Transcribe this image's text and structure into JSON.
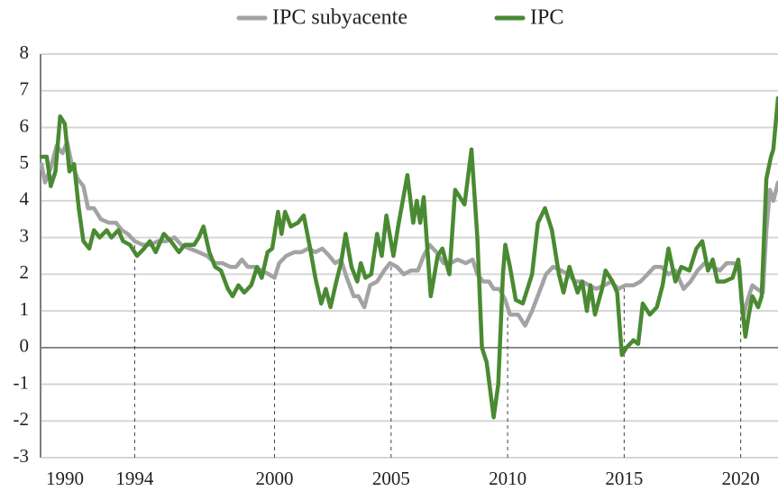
{
  "chart_data": {
    "type": "line",
    "xlim": [
      1990,
      2021.6
    ],
    "xticks": [
      1990,
      1994,
      2000,
      2005,
      2010,
      2015,
      2020
    ],
    "ylim": [
      -3,
      8
    ],
    "yticks": [
      -3,
      -2,
      -1,
      0,
      1,
      2,
      3,
      4,
      5,
      6,
      7,
      8
    ],
    "grid": true,
    "legend": "top",
    "series": [
      {
        "name": "IPC subyacente",
        "color": "#a3a3a3",
        "x": [
          1990,
          1990.15,
          1990.4,
          1990.65,
          1990.9,
          1991.1,
          1991.3,
          1991.55,
          1991.8,
          1992,
          1992.25,
          1992.55,
          1992.9,
          1993.2,
          1993.45,
          1993.7,
          1994,
          1994.35,
          1994.65,
          1995,
          1995.35,
          1995.7,
          1996,
          1996.35,
          1996.75,
          1997.1,
          1997.45,
          1997.75,
          1998.1,
          1998.35,
          1998.6,
          1998.85,
          1999.15,
          1999.45,
          1999.75,
          2000,
          2000.2,
          2000.5,
          2000.85,
          2001.15,
          2001.45,
          2001.75,
          2002.05,
          2002.35,
          2002.6,
          2002.85,
          2003.1,
          2003.4,
          2003.6,
          2003.85,
          2004.1,
          2004.4,
          2004.7,
          2004.95,
          2005.25,
          2005.55,
          2005.85,
          2006.15,
          2006.4,
          2006.65,
          2006.95,
          2007.25,
          2007.55,
          2007.85,
          2008.2,
          2008.5,
          2008.7,
          2008.95,
          2009.2,
          2009.4,
          2009.65,
          2009.9,
          2010.1,
          2010.45,
          2010.75,
          2011.05,
          2011.35,
          2011.65,
          2011.95,
          2012.3,
          2012.6,
          2012.9,
          2013.2,
          2013.5,
          2013.8,
          2014.15,
          2014.45,
          2014.75,
          2015.05,
          2015.4,
          2015.7,
          2016,
          2016.3,
          2016.6,
          2016.9,
          2017.2,
          2017.55,
          2017.85,
          2018.15,
          2018.45,
          2018.8,
          2019.1,
          2019.4,
          2019.7,
          2019.95,
          2020.1,
          2020.25,
          2020.5,
          2020.7,
          2020.95,
          2021.1,
          2021.25,
          2021.4,
          2021.6
        ],
        "values": [
          5.0,
          4.5,
          4.9,
          5.5,
          5.3,
          5.6,
          5.0,
          4.6,
          4.4,
          3.8,
          3.8,
          3.5,
          3.4,
          3.4,
          3.2,
          3.1,
          2.9,
          2.8,
          2.8,
          2.9,
          2.9,
          3.0,
          2.8,
          2.7,
          2.6,
          2.5,
          2.3,
          2.3,
          2.2,
          2.2,
          2.4,
          2.2,
          2.2,
          2.1,
          2.0,
          1.9,
          2.3,
          2.5,
          2.6,
          2.6,
          2.7,
          2.6,
          2.7,
          2.5,
          2.3,
          2.4,
          1.9,
          1.4,
          1.4,
          1.1,
          1.7,
          1.8,
          2.1,
          2.3,
          2.2,
          2.0,
          2.1,
          2.1,
          2.5,
          2.8,
          2.6,
          2.3,
          2.3,
          2.4,
          2.3,
          2.4,
          2.0,
          1.8,
          1.8,
          1.6,
          1.6,
          1.3,
          0.9,
          0.9,
          0.6,
          1.0,
          1.5,
          2.0,
          2.2,
          2.1,
          2.0,
          1.8,
          1.8,
          1.7,
          1.6,
          1.7,
          1.8,
          1.6,
          1.7,
          1.7,
          1.8,
          2.0,
          2.2,
          2.2,
          2.0,
          2.1,
          1.6,
          1.8,
          2.1,
          2.3,
          2.2,
          2.1,
          2.3,
          2.3,
          2.2,
          0.8,
          1.2,
          1.7,
          1.6,
          1.5,
          3.2,
          4.3,
          4.0,
          4.5
        ]
      },
      {
        "name": "IPC",
        "color": "#4a8a32",
        "x": [
          1990,
          1990.23,
          1990.4,
          1990.6,
          1990.8,
          1991,
          1991.2,
          1991.4,
          1991.6,
          1991.8,
          1992.05,
          1992.25,
          1992.5,
          1992.8,
          1993,
          1993.3,
          1993.5,
          1993.8,
          1994.1,
          1994.4,
          1994.65,
          1994.9,
          1995.25,
          1995.55,
          1995.9,
          1996.15,
          1996.55,
          1996.75,
          1996.95,
          1997.2,
          1997.45,
          1997.7,
          1998,
          1998.2,
          1998.45,
          1998.7,
          1999,
          1999.25,
          1999.45,
          1999.7,
          1999.9,
          2000.15,
          2000.3,
          2000.45,
          2000.7,
          2001,
          2001.25,
          2001.5,
          2001.75,
          2002,
          2002.2,
          2002.4,
          2002.65,
          2002.85,
          2003.05,
          2003.3,
          2003.55,
          2003.7,
          2003.9,
          2004.15,
          2004.4,
          2004.6,
          2004.8,
          2005.1,
          2005.3,
          2005.7,
          2005.95,
          2006.1,
          2006.25,
          2006.4,
          2006.7,
          2007,
          2007.2,
          2007.5,
          2007.75,
          2008.15,
          2008.45,
          2008.7,
          2008.9,
          2009.1,
          2009.4,
          2009.6,
          2009.8,
          2009.9,
          2010.1,
          2010.35,
          2010.65,
          2011.05,
          2011.3,
          2011.6,
          2011.9,
          2012.2,
          2012.4,
          2012.65,
          2013,
          2013.2,
          2013.4,
          2013.55,
          2013.75,
          2014.05,
          2014.2,
          2014.5,
          2014.7,
          2014.9,
          2015.1,
          2015.4,
          2015.6,
          2015.8,
          2016.1,
          2016.4,
          2016.65,
          2016.9,
          2017.2,
          2017.45,
          2017.8,
          2018.1,
          2018.35,
          2018.6,
          2018.8,
          2019,
          2019.3,
          2019.65,
          2019.9,
          2020.05,
          2020.2,
          2020.35,
          2020.5,
          2020.75,
          2020.9,
          2021.1,
          2021.3,
          2021.4,
          2021.6
        ],
        "values": [
          5.2,
          5.2,
          4.4,
          4.8,
          6.3,
          6.1,
          4.8,
          5.0,
          3.8,
          2.9,
          2.7,
          3.2,
          3.0,
          3.2,
          3.0,
          3.2,
          2.9,
          2.8,
          2.5,
          2.7,
          2.9,
          2.6,
          3.1,
          2.9,
          2.6,
          2.8,
          2.8,
          3.0,
          3.3,
          2.6,
          2.2,
          2.1,
          1.6,
          1.4,
          1.7,
          1.5,
          1.7,
          2.2,
          1.9,
          2.6,
          2.7,
          3.7,
          3.1,
          3.7,
          3.3,
          3.4,
          3.6,
          2.8,
          1.9,
          1.2,
          1.6,
          1.1,
          1.8,
          2.3,
          3.1,
          2.2,
          1.8,
          2.3,
          1.9,
          2.0,
          3.1,
          2.5,
          3.6,
          2.5,
          3.3,
          4.7,
          3.4,
          4.0,
          3.4,
          4.1,
          1.4,
          2.5,
          2.7,
          2.0,
          4.3,
          3.9,
          5.4,
          3.0,
          0.0,
          -0.4,
          -1.9,
          -1.0,
          2.0,
          2.8,
          2.2,
          1.3,
          1.2,
          2.0,
          3.4,
          3.8,
          3.2,
          2.0,
          1.5,
          2.2,
          1.5,
          1.8,
          1.0,
          1.7,
          0.9,
          1.6,
          2.1,
          1.8,
          1.5,
          -0.2,
          0.0,
          0.2,
          0.1,
          1.2,
          0.9,
          1.1,
          1.7,
          2.7,
          1.8,
          2.2,
          2.1,
          2.7,
          2.9,
          2.1,
          2.4,
          1.8,
          1.8,
          1.9,
          2.4,
          1.2,
          0.3,
          0.9,
          1.4,
          1.1,
          1.4,
          4.6,
          5.2,
          5.4,
          6.8
        ]
      }
    ]
  }
}
